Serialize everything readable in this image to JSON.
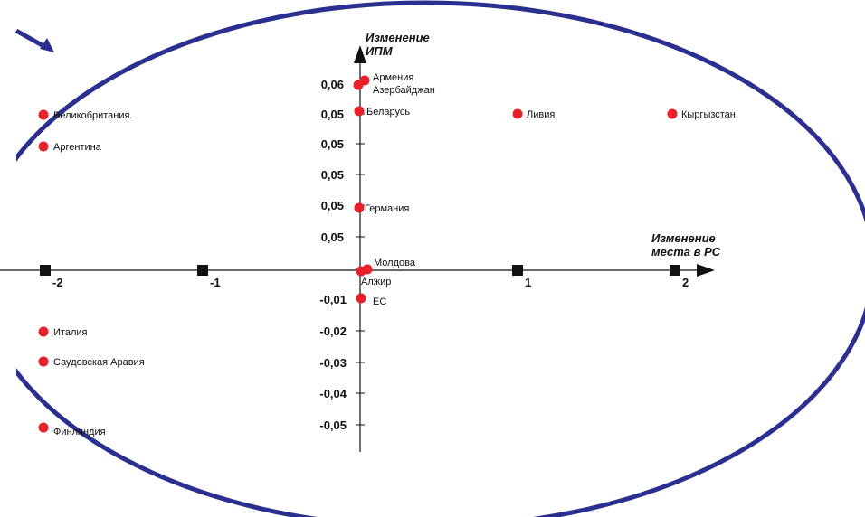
{
  "colors": {
    "ellipse": "#2b2f8f",
    "points": "#e8202a",
    "axis": "#111111",
    "markers": "#111111"
  },
  "chart_data": {
    "type": "scatter",
    "xlabel_lines": [
      "Изменение",
      "места в РС"
    ],
    "ylabel_lines": [
      "Изменение",
      "ИПМ"
    ],
    "xlim": [
      -2,
      2
    ],
    "x_ticks": [
      -2,
      -1,
      1,
      2
    ],
    "x_tick_labels": [
      "-2",
      "-1",
      "1",
      "2"
    ],
    "y_tick_labels_positive": [
      "0,06",
      "0,05",
      "0,05",
      "0,05",
      "0,05",
      "0,05"
    ],
    "y_tick_labels_negative": [
      "-0,01",
      "-0,02",
      "-0,03",
      "-0,04",
      "-0,05"
    ],
    "points": [
      {
        "label": "Армения",
        "x": 0.04,
        "y": 0.061
      },
      {
        "label": "Азербайджан",
        "x": 0.0,
        "y": 0.06
      },
      {
        "label": "Беларусь",
        "x": 0.0,
        "y": 0.051
      },
      {
        "label": "Ливия",
        "x": 1.0,
        "y": 0.051
      },
      {
        "label": "Кыргызстан",
        "x": 2.0,
        "y": 0.051
      },
      {
        "label": "Великобритания.",
        "x": -2.0,
        "y": 0.051
      },
      {
        "label": "Аргентина",
        "x": -2.0,
        "y": 0.041
      },
      {
        "label": "Германия",
        "x": 0.0,
        "y": 0.02
      },
      {
        "label": "Молдова",
        "x": 0.04,
        "y": 0.0005
      },
      {
        "label": "Алжир",
        "x": 0.0,
        "y": 0.0
      },
      {
        "label": "ЕС",
        "x": 0.0,
        "y": -0.009
      },
      {
        "label": "Италия",
        "x": -2.0,
        "y": -0.02
      },
      {
        "label": "Саудовская Аравия",
        "x": -2.0,
        "y": -0.029
      },
      {
        "label": "Финляндия",
        "x": -2.0,
        "y": -0.05
      }
    ]
  }
}
